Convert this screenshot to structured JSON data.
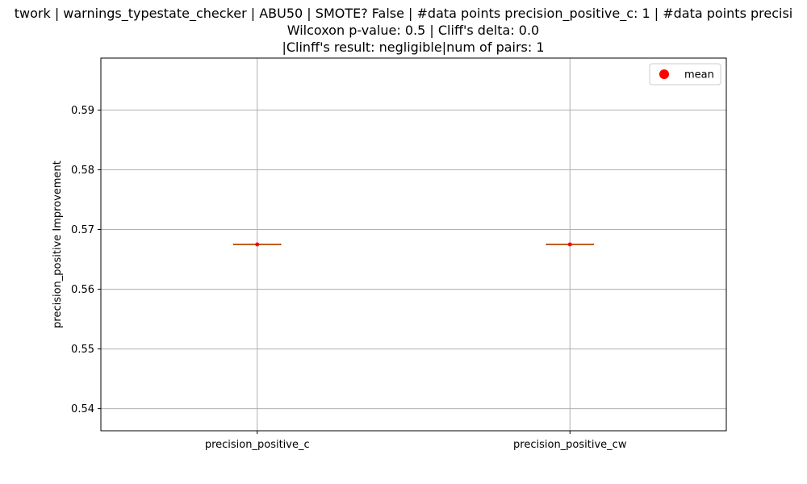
{
  "chart_data": {
    "type": "box",
    "title_lines": [
      "twork | warnings_typestate_checker | ABU50 | SMOTE? False | #data points precision_positive_c: 1 | #data points precisi",
      "Wilcoxon p-value: 0.5 | Cliff's delta: 0.0",
      "|Clinff's result: negligible|num of pairs: 1"
    ],
    "xlabel": "",
    "ylabel": "precision_positive Improvement",
    "categories": [
      "precision_positive_c",
      "precision_positive_cw"
    ],
    "series": [
      {
        "name": "precision_positive_c",
        "values": [
          0.5675
        ],
        "min": 0.5675,
        "q1": 0.5675,
        "median": 0.5675,
        "q3": 0.5675,
        "max": 0.5675,
        "mean": 0.5675
      },
      {
        "name": "precision_positive_cw",
        "values": [
          0.5675
        ],
        "min": 0.5675,
        "q1": 0.5675,
        "median": 0.5675,
        "q3": 0.5675,
        "max": 0.5675,
        "mean": 0.5675
      }
    ],
    "ylim": [
      0.5363,
      0.5987
    ],
    "yticks": [
      0.54,
      0.55,
      0.56,
      0.57,
      0.58,
      0.59
    ],
    "ytick_labels": [
      "0.54",
      "0.55",
      "0.56",
      "0.57",
      "0.58",
      "0.59"
    ],
    "grid": true,
    "legend": {
      "position": "upper-right",
      "entries": [
        {
          "label": "mean",
          "marker": "circle",
          "color": "#ff0000"
        }
      ]
    },
    "colors": {
      "box_edge": "#000000",
      "median": "#ff7f0e",
      "mean_marker": "#ff0000",
      "grid": "#b0b0b0"
    }
  }
}
